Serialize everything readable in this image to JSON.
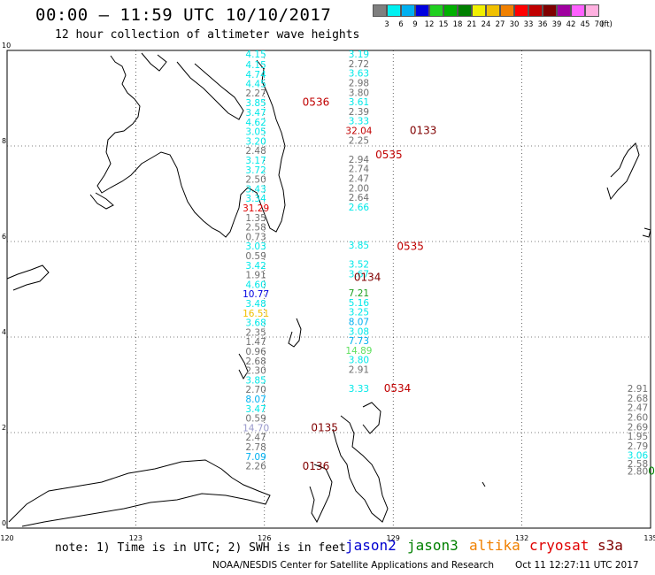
{
  "header": {
    "title": "00:00 – 11:59 UTC 10/10/2017",
    "subtitle": "12 hour collection of altimeter wave heights"
  },
  "color_scale": {
    "unit": "(ft)",
    "colors": [
      "#7f7f7f",
      "#00f0f0",
      "#00b0f0",
      "#0000e0",
      "#20d020",
      "#00b000",
      "#008000",
      "#f0f000",
      "#f0c000",
      "#f08000",
      "#ff0000",
      "#c00000",
      "#800000",
      "#a000a0",
      "#ff60ff",
      "#ffb0e0"
    ],
    "labels": [
      "3",
      "6",
      "9",
      "12",
      "15",
      "18",
      "21",
      "24",
      "27",
      "30",
      "33",
      "36",
      "39",
      "42",
      "45",
      "70"
    ]
  },
  "axes": {
    "lon_ticks": [
      "120",
      "123",
      "126",
      "129",
      "132",
      "135"
    ],
    "lat_ticks": [
      "0",
      "2",
      "4",
      "6",
      "8",
      "10"
    ]
  },
  "track_labels": [
    {
      "text": "4.15",
      "color": "#00e8e8",
      "lat": 9.85,
      "lon": 125.8
    },
    {
      "text": "4.15",
      "color": "#00e8e8",
      "lat": 9.63,
      "lon": 125.8
    },
    {
      "text": "4.74",
      "color": "#00e8e8",
      "lat": 9.43,
      "lon": 125.8
    },
    {
      "text": "4.45",
      "color": "#00e8e8",
      "lat": 9.23,
      "lon": 125.8
    },
    {
      "text": "2.27",
      "color": "#707070",
      "lat": 9.04,
      "lon": 125.8
    },
    {
      "text": "3.85",
      "color": "#00e8e8",
      "lat": 8.83,
      "lon": 125.8
    },
    {
      "text": "3.47",
      "color": "#00e8e8",
      "lat": 8.63,
      "lon": 125.8
    },
    {
      "text": "4.62",
      "color": "#00e8e8",
      "lat": 8.43,
      "lon": 125.8
    },
    {
      "text": "3.05",
      "color": "#00e8e8",
      "lat": 8.23,
      "lon": 125.8
    },
    {
      "text": "3.20",
      "color": "#00e8e8",
      "lat": 8.03,
      "lon": 125.8
    },
    {
      "text": "2.48",
      "color": "#707070",
      "lat": 7.83,
      "lon": 125.8
    },
    {
      "text": "3.17",
      "color": "#00e8e8",
      "lat": 7.63,
      "lon": 125.8
    },
    {
      "text": "3.72",
      "color": "#00e8e8",
      "lat": 7.43,
      "lon": 125.8
    },
    {
      "text": "2.50",
      "color": "#707070",
      "lat": 7.23,
      "lon": 125.8
    },
    {
      "text": "3.43",
      "color": "#00e8e8",
      "lat": 7.03,
      "lon": 125.8
    },
    {
      "text": "3.34",
      "color": "#00e8e8",
      "lat": 6.83,
      "lon": 125.8
    },
    {
      "text": "31.29",
      "color": "#e00000",
      "lat": 6.63,
      "lon": 125.8
    },
    {
      "text": "1.35",
      "color": "#707070",
      "lat": 6.43,
      "lon": 125.8
    },
    {
      "text": "2.58",
      "color": "#707070",
      "lat": 6.23,
      "lon": 125.8
    },
    {
      "text": "0.73",
      "color": "#707070",
      "lat": 6.03,
      "lon": 125.8
    },
    {
      "text": "3.03",
      "color": "#00e8e8",
      "lat": 5.83,
      "lon": 125.8
    },
    {
      "text": "0.59",
      "color": "#707070",
      "lat": 5.63,
      "lon": 125.8
    },
    {
      "text": "3.42",
      "color": "#00e8e8",
      "lat": 5.43,
      "lon": 125.8
    },
    {
      "text": "1.91",
      "color": "#707070",
      "lat": 5.23,
      "lon": 125.8
    },
    {
      "text": "4.60",
      "color": "#00e8e8",
      "lat": 5.03,
      "lon": 125.8
    },
    {
      "text": "10.77",
      "color": "#0000e0",
      "lat": 4.83,
      "lon": 125.8
    },
    {
      "text": "3.48",
      "color": "#00e8e8",
      "lat": 4.63,
      "lon": 125.8
    },
    {
      "text": "16.51",
      "color": "#f0c000",
      "lat": 4.43,
      "lon": 125.8
    },
    {
      "text": "3.68",
      "color": "#00e8e8",
      "lat": 4.23,
      "lon": 125.8
    },
    {
      "text": "2.35",
      "color": "#707070",
      "lat": 4.03,
      "lon": 125.8
    },
    {
      "text": "1.47",
      "color": "#707070",
      "lat": 3.83,
      "lon": 125.8
    },
    {
      "text": "0.96",
      "color": "#707070",
      "lat": 3.63,
      "lon": 125.8
    },
    {
      "text": "2.68",
      "color": "#707070",
      "lat": 3.43,
      "lon": 125.8
    },
    {
      "text": "2.30",
      "color": "#707070",
      "lat": 3.23,
      "lon": 125.8
    },
    {
      "text": "3.85",
      "color": "#00e8e8",
      "lat": 3.03,
      "lon": 125.8
    },
    {
      "text": "2.70",
      "color": "#707070",
      "lat": 2.83,
      "lon": 125.8
    },
    {
      "text": "8.07",
      "color": "#00b0f0",
      "lat": 2.63,
      "lon": 125.8
    },
    {
      "text": "3.47",
      "color": "#00e8e8",
      "lat": 2.43,
      "lon": 125.8
    },
    {
      "text": "0.59",
      "color": "#707070",
      "lat": 2.23,
      "lon": 125.8
    },
    {
      "text": "14.70",
      "color": "#9999cc",
      "lat": 2.03,
      "lon": 125.8
    },
    {
      "text": "2.47",
      "color": "#707070",
      "lat": 1.83,
      "lon": 125.8
    },
    {
      "text": "2.78",
      "color": "#707070",
      "lat": 1.63,
      "lon": 125.8
    },
    {
      "text": "7.09",
      "color": "#00b0f0",
      "lat": 1.43,
      "lon": 125.8
    },
    {
      "text": "2.26",
      "color": "#707070",
      "lat": 1.23,
      "lon": 125.8
    },
    {
      "text": "3.19",
      "color": "#00e8e8",
      "lat": 9.85,
      "lon": 128.2
    },
    {
      "text": "2.72",
      "color": "#707070",
      "lat": 9.65,
      "lon": 128.2
    },
    {
      "text": "3.63",
      "color": "#00e8e8",
      "lat": 9.45,
      "lon": 128.2
    },
    {
      "text": "2.98",
      "color": "#707070",
      "lat": 9.25,
      "lon": 128.2
    },
    {
      "text": "3.80",
      "color": "#707070",
      "lat": 9.05,
      "lon": 128.2
    },
    {
      "text": "3.61",
      "color": "#00e8e8",
      "lat": 8.85,
      "lon": 128.2
    },
    {
      "text": "2.39",
      "color": "#707070",
      "lat": 8.65,
      "lon": 128.2
    },
    {
      "text": "3.33",
      "color": "#00e8e8",
      "lat": 8.45,
      "lon": 128.2
    },
    {
      "text": "32.04",
      "color": "#c00000",
      "lat": 8.25,
      "lon": 128.2
    },
    {
      "text": "2.25",
      "color": "#707070",
      "lat": 8.05,
      "lon": 128.2
    },
    {
      "text": "2.94",
      "color": "#707070",
      "lat": 7.65,
      "lon": 128.2
    },
    {
      "text": "2.74",
      "color": "#707070",
      "lat": 7.45,
      "lon": 128.2
    },
    {
      "text": "2.47",
      "color": "#707070",
      "lat": 7.25,
      "lon": 128.2
    },
    {
      "text": "2.00",
      "color": "#707070",
      "lat": 7.05,
      "lon": 128.2
    },
    {
      "text": "2.64",
      "color": "#707070",
      "lat": 6.85,
      "lon": 128.2
    },
    {
      "text": "2.66",
      "color": "#00e8e8",
      "lat": 6.65,
      "lon": 128.2
    },
    {
      "text": "3.85",
      "color": "#00e8e8",
      "lat": 5.85,
      "lon": 128.2
    },
    {
      "text": "3.52",
      "color": "#00e8e8",
      "lat": 5.45,
      "lon": 128.2
    },
    {
      "text": "3.67",
      "color": "#00e8e8",
      "lat": 5.25,
      "lon": 128.2
    },
    {
      "text": "7.21",
      "color": "#20a020",
      "lat": 4.85,
      "lon": 128.2
    },
    {
      "text": "5.16",
      "color": "#00e8e8",
      "lat": 4.65,
      "lon": 128.2
    },
    {
      "text": "3.25",
      "color": "#00e8e8",
      "lat": 4.45,
      "lon": 128.2
    },
    {
      "text": "8.07",
      "color": "#00b0f0",
      "lat": 4.25,
      "lon": 128.2
    },
    {
      "text": "3.08",
      "color": "#00e8e8",
      "lat": 4.05,
      "lon": 128.2
    },
    {
      "text": "7.73",
      "color": "#00b0f0",
      "lat": 3.85,
      "lon": 128.2
    },
    {
      "text": "14.89",
      "color": "#60e060",
      "lat": 3.65,
      "lon": 128.2
    },
    {
      "text": "3.80",
      "color": "#00e8e8",
      "lat": 3.45,
      "lon": 128.2
    },
    {
      "text": "2.91",
      "color": "#707070",
      "lat": 3.25,
      "lon": 128.2
    },
    {
      "text": "3.33",
      "color": "#00e8e8",
      "lat": 2.85,
      "lon": 128.2
    },
    {
      "text": "2.91",
      "color": "#707070",
      "lat": 2.85,
      "lon": 134.7
    },
    {
      "text": "2.68",
      "color": "#707070",
      "lat": 2.65,
      "lon": 134.7
    },
    {
      "text": "2.47",
      "color": "#707070",
      "lat": 2.45,
      "lon": 134.7
    },
    {
      "text": "2.60",
      "color": "#707070",
      "lat": 2.25,
      "lon": 134.7
    },
    {
      "text": "2.69",
      "color": "#707070",
      "lat": 2.05,
      "lon": 134.7
    },
    {
      "text": "1.95",
      "color": "#707070",
      "lat": 1.85,
      "lon": 134.7
    },
    {
      "text": "2.79",
      "color": "#707070",
      "lat": 1.65,
      "lon": 134.7
    },
    {
      "text": "3.06",
      "color": "#00e8e8",
      "lat": 1.45,
      "lon": 134.7
    },
    {
      "text": "2.58",
      "color": "#707070",
      "lat": 1.28,
      "lon": 134.7
    },
    {
      "text": "2.80",
      "color": "#707070",
      "lat": 1.12,
      "lon": 134.7
    }
  ],
  "time_labels": [
    {
      "text": "0536",
      "color": "#c00000",
      "lat": 8.84,
      "lon": 127.2
    },
    {
      "text": "0133",
      "color": "#800000",
      "lat": 8.25,
      "lon": 129.7
    },
    {
      "text": "0535",
      "color": "#c00000",
      "lat": 7.74,
      "lon": 128.9
    },
    {
      "text": "0535",
      "color": "#c00000",
      "lat": 5.82,
      "lon": 129.4
    },
    {
      "text": "0134",
      "color": "#800000",
      "lat": 5.18,
      "lon": 128.4
    },
    {
      "text": "0534",
      "color": "#c00000",
      "lat": 2.85,
      "lon": 129.1
    },
    {
      "text": "0135",
      "color": "#800000",
      "lat": 2.03,
      "lon": 127.4
    },
    {
      "text": "0136",
      "color": "#800000",
      "lat": 1.22,
      "lon": 127.2
    },
    {
      "text": "06",
      "color": "#008000",
      "lat": 1.12,
      "lon": 135.1
    }
  ],
  "note": "note: 1) Time is in UTC; 2) SWH is in feet",
  "satellites": [
    {
      "name": "jason2",
      "color": "#0000d0"
    },
    {
      "name": "jason3",
      "color": "#008000"
    },
    {
      "name": "altika",
      "color": "#f08000"
    },
    {
      "name": "cryosat",
      "color": "#e00000"
    },
    {
      "name": "s3a",
      "color": "#800000"
    }
  ],
  "credit": "NOAA/NESDIS Center for Satellite Applications and Research",
  "credit_date": "Oct 11 12:27:11 UTC 2017"
}
